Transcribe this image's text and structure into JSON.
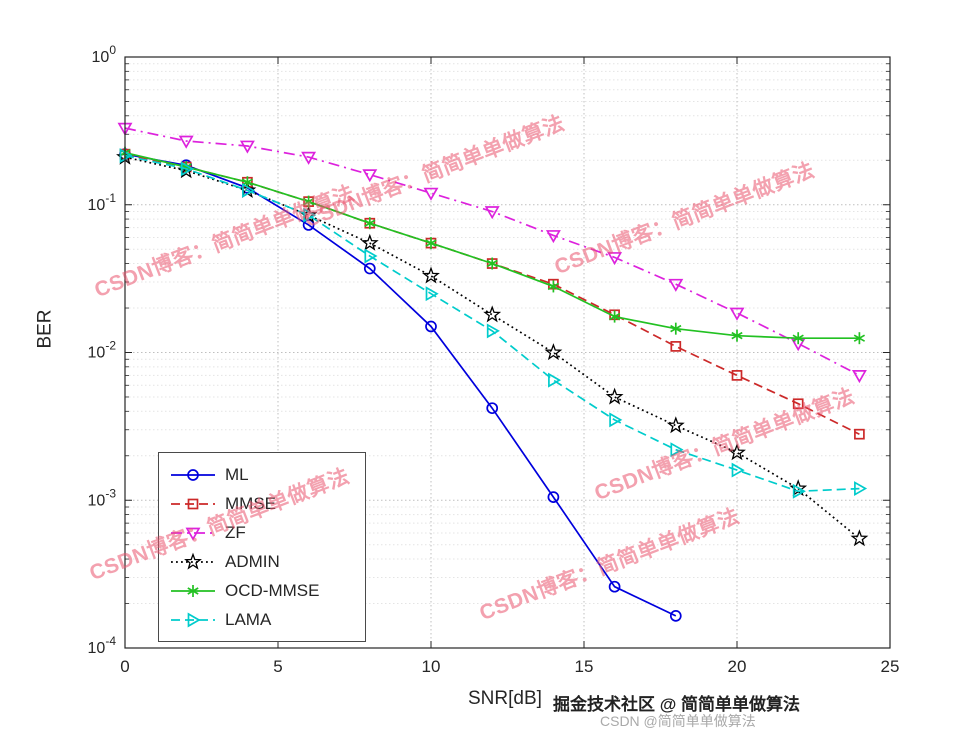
{
  "chart_data": {
    "type": "line",
    "title": "",
    "xlabel": "SNR[dB]",
    "ylabel": "BER",
    "xlim": [
      0,
      25
    ],
    "ylim": [
      0.0001,
      1
    ],
    "xticks": [
      0,
      5,
      10,
      15,
      20,
      25
    ],
    "ytick_exponents": [
      0,
      -1,
      -2,
      -3,
      -4
    ],
    "yscale": "log",
    "grid": true,
    "legend_position": "lower-left",
    "series": [
      {
        "name": "ML",
        "color": "#0000dd",
        "line": "solid",
        "marker": "circle",
        "x": [
          0,
          2,
          4,
          6,
          8,
          10,
          12,
          14,
          16,
          18
        ],
        "y": [
          0.22,
          0.185,
          0.13,
          0.073,
          0.037,
          0.015,
          0.0042,
          0.00105,
          0.00026,
          0.000165
        ]
      },
      {
        "name": "MMSE",
        "color": "#cc2929",
        "line": "dashed",
        "marker": "square",
        "x": [
          0,
          2,
          4,
          6,
          8,
          10,
          12,
          14,
          16,
          18,
          20,
          22,
          24
        ],
        "y": [
          0.22,
          0.18,
          0.142,
          0.105,
          0.075,
          0.055,
          0.04,
          0.029,
          0.018,
          0.011,
          0.007,
          0.0045,
          0.0028
        ]
      },
      {
        "name": "ZF",
        "color": "#dd22dd",
        "line": "dashdot",
        "marker": "triangle-down",
        "x": [
          0,
          2,
          4,
          6,
          8,
          10,
          12,
          14,
          16,
          18,
          20,
          22,
          24
        ],
        "y": [
          0.33,
          0.27,
          0.25,
          0.21,
          0.16,
          0.12,
          0.09,
          0.062,
          0.044,
          0.029,
          0.0185,
          0.0115,
          0.007
        ]
      },
      {
        "name": "ADMIN",
        "color": "#000000",
        "line": "dotted",
        "marker": "star",
        "x": [
          0,
          2,
          4,
          6,
          8,
          10,
          12,
          14,
          16,
          18,
          20,
          22,
          24
        ],
        "y": [
          0.21,
          0.17,
          0.125,
          0.085,
          0.055,
          0.033,
          0.018,
          0.01,
          0.005,
          0.0032,
          0.0021,
          0.0012,
          0.00055
        ]
      },
      {
        "name": "OCD-MMSE",
        "color": "#22c122",
        "line": "solid",
        "marker": "asterisk",
        "x": [
          0,
          2,
          4,
          6,
          8,
          10,
          12,
          14,
          16,
          18,
          20,
          22,
          24
        ],
        "y": [
          0.225,
          0.18,
          0.142,
          0.105,
          0.075,
          0.055,
          0.04,
          0.028,
          0.0175,
          0.0145,
          0.013,
          0.0125,
          0.0125
        ]
      },
      {
        "name": "LAMA",
        "color": "#00cccc",
        "line": "dashed",
        "marker": "triangle-right",
        "x": [
          0,
          2,
          4,
          6,
          8,
          10,
          12,
          14,
          16,
          18,
          20,
          22,
          24
        ],
        "y": [
          0.215,
          0.175,
          0.125,
          0.085,
          0.045,
          0.025,
          0.014,
          0.0065,
          0.0035,
          0.0022,
          0.0016,
          0.00115,
          0.0012
        ]
      }
    ]
  },
  "watermark": {
    "text": "CSDN博客：简简单单做算法"
  },
  "footer": {
    "juejin": "掘金技术社区 @ 简简单单做算法",
    "csdn": "CSDN @简简单单做算法"
  }
}
